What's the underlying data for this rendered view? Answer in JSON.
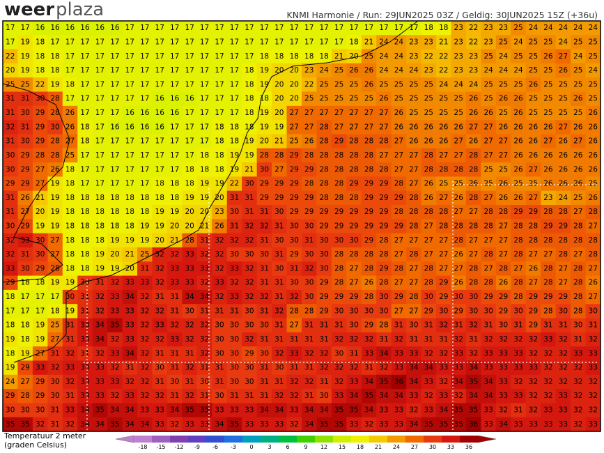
{
  "header": {
    "logo_weer": "weer",
    "logo_plaza": "plaza",
    "info": "KNMI Harmonie / Run: 29JUN2025 03Z / Geldig: 30JUN2025 15Z (+36u)"
  },
  "map": {
    "grid": [
      [
        17,
        17,
        16,
        16,
        16,
        16,
        16,
        16,
        17,
        17,
        17,
        17,
        17,
        17,
        17,
        17,
        17,
        17,
        17,
        17,
        17,
        17,
        17,
        17,
        17,
        17,
        17,
        17,
        18,
        18,
        23,
        22,
        23,
        23,
        25,
        24,
        24,
        24,
        24,
        24
      ],
      [
        17,
        19,
        18,
        17,
        17,
        17,
        17,
        17,
        17,
        17,
        17,
        17,
        17,
        17,
        17,
        17,
        17,
        17,
        17,
        17,
        17,
        17,
        17,
        18,
        21,
        24,
        24,
        23,
        23,
        21,
        23,
        22,
        23,
        25,
        24,
        25,
        25,
        24,
        25,
        25
      ],
      [
        22,
        19,
        18,
        18,
        17,
        17,
        17,
        17,
        17,
        17,
        17,
        17,
        17,
        17,
        17,
        17,
        17,
        18,
        18,
        18,
        18,
        18,
        21,
        20,
        25,
        24,
        24,
        23,
        22,
        22,
        23,
        23,
        25,
        24,
        25,
        25,
        26,
        27,
        24,
        25
      ],
      [
        20,
        19,
        18,
        18,
        17,
        17,
        17,
        17,
        17,
        17,
        17,
        17,
        17,
        17,
        17,
        17,
        18,
        19,
        20,
        20,
        23,
        24,
        25,
        26,
        26,
        24,
        24,
        24,
        23,
        22,
        23,
        23,
        24,
        24,
        24,
        25,
        25,
        26,
        25,
        24
      ],
      [
        25,
        25,
        22,
        19,
        18,
        17,
        17,
        17,
        17,
        17,
        17,
        17,
        17,
        17,
        17,
        17,
        18,
        19,
        20,
        20,
        22,
        25,
        25,
        25,
        26,
        25,
        25,
        25,
        25,
        24,
        24,
        24,
        25,
        25,
        25,
        26,
        25,
        25,
        25,
        25
      ],
      [
        31,
        31,
        30,
        28,
        17,
        17,
        17,
        17,
        17,
        17,
        16,
        16,
        16,
        17,
        17,
        17,
        18,
        18,
        20,
        20,
        25,
        25,
        25,
        25,
        25,
        26,
        25,
        25,
        25,
        25,
        25,
        26,
        25,
        26,
        26,
        25,
        25,
        25,
        26,
        25
      ],
      [
        31,
        30,
        29,
        28,
        26,
        17,
        17,
        17,
        16,
        16,
        16,
        16,
        17,
        17,
        17,
        17,
        18,
        19,
        20,
        27,
        27,
        27,
        27,
        27,
        27,
        27,
        26,
        25,
        25,
        25,
        25,
        26,
        26,
        25,
        26,
        25,
        25,
        25,
        25,
        26
      ],
      [
        32,
        31,
        29,
        30,
        26,
        18,
        17,
        16,
        16,
        16,
        16,
        17,
        17,
        17,
        18,
        18,
        18,
        19,
        19,
        27,
        27,
        28,
        27,
        27,
        27,
        27,
        26,
        26,
        26,
        26,
        26,
        27,
        27,
        26,
        26,
        26,
        26,
        27,
        26,
        26
      ],
      [
        31,
        30,
        29,
        28,
        27,
        18,
        17,
        17,
        17,
        17,
        17,
        17,
        17,
        17,
        18,
        18,
        19,
        20,
        21,
        25,
        26,
        28,
        29,
        28,
        28,
        28,
        27,
        26,
        26,
        26,
        27,
        26,
        27,
        27,
        26,
        26,
        27,
        26,
        27,
        26
      ],
      [
        30,
        29,
        28,
        28,
        25,
        17,
        17,
        17,
        17,
        17,
        17,
        17,
        17,
        18,
        18,
        19,
        19,
        28,
        28,
        29,
        28,
        28,
        28,
        28,
        28,
        27,
        27,
        27,
        28,
        27,
        27,
        28,
        27,
        27,
        26,
        26,
        26,
        26,
        26,
        26
      ],
      [
        30,
        29,
        27,
        26,
        18,
        17,
        17,
        17,
        17,
        17,
        17,
        17,
        18,
        18,
        18,
        19,
        21,
        30,
        27,
        29,
        29,
        28,
        28,
        28,
        28,
        28,
        27,
        27,
        28,
        28,
        28,
        28,
        25,
        25,
        26,
        27,
        26,
        26,
        26,
        26
      ],
      [
        29,
        29,
        27,
        19,
        18,
        17,
        17,
        17,
        17,
        17,
        18,
        18,
        18,
        19,
        19,
        22,
        30,
        29,
        29,
        29,
        28,
        28,
        28,
        29,
        29,
        29,
        28,
        27,
        26,
        25,
        25,
        26,
        25,
        26,
        25,
        25,
        26,
        26,
        26,
        25
      ],
      [
        31,
        26,
        21,
        19,
        18,
        18,
        18,
        18,
        18,
        18,
        18,
        18,
        19,
        19,
        20,
        31,
        31,
        29,
        29,
        29,
        29,
        28,
        28,
        28,
        29,
        29,
        29,
        28,
        26,
        27,
        26,
        28,
        27,
        26,
        26,
        27,
        23,
        24,
        25,
        26
      ],
      [
        31,
        27,
        20,
        19,
        18,
        18,
        18,
        18,
        18,
        18,
        19,
        19,
        20,
        20,
        23,
        30,
        31,
        31,
        30,
        29,
        29,
        29,
        29,
        29,
        29,
        29,
        28,
        28,
        28,
        28,
        27,
        27,
        28,
        28,
        29,
        29,
        28,
        28,
        27,
        28
      ],
      [
        30,
        29,
        19,
        19,
        18,
        18,
        18,
        18,
        18,
        19,
        19,
        20,
        20,
        21,
        26,
        31,
        32,
        32,
        31,
        30,
        30,
        29,
        29,
        29,
        29,
        29,
        29,
        28,
        27,
        28,
        28,
        28,
        28,
        27,
        28,
        28,
        29,
        29,
        28,
        27
      ],
      [
        32,
        33,
        30,
        27,
        18,
        18,
        18,
        19,
        19,
        19,
        20,
        21,
        28,
        31,
        32,
        32,
        32,
        31,
        30,
        30,
        31,
        30,
        30,
        30,
        29,
        28,
        27,
        27,
        27,
        27,
        28,
        27,
        27,
        27,
        28,
        28,
        28,
        28,
        28,
        28
      ],
      [
        32,
        31,
        30,
        27,
        18,
        18,
        19,
        20,
        21,
        25,
        32,
        32,
        33,
        32,
        32,
        30,
        30,
        30,
        31,
        29,
        30,
        30,
        28,
        28,
        28,
        28,
        27,
        28,
        27,
        27,
        26,
        27,
        28,
        27,
        28,
        27,
        27,
        28,
        27,
        28
      ],
      [
        33,
        30,
        29,
        28,
        18,
        18,
        19,
        19,
        20,
        31,
        32,
        33,
        33,
        33,
        32,
        33,
        32,
        31,
        30,
        31,
        32,
        30,
        28,
        27,
        28,
        29,
        28,
        27,
        28,
        27,
        27,
        28,
        27,
        28,
        27,
        26,
        28,
        27,
        28,
        27
      ],
      [
        29,
        18,
        18,
        19,
        19,
        30,
        31,
        32,
        33,
        33,
        32,
        33,
        33,
        32,
        33,
        32,
        32,
        31,
        31,
        30,
        30,
        29,
        28,
        27,
        26,
        28,
        27,
        27,
        28,
        29,
        26,
        28,
        28,
        26,
        28,
        27,
        28,
        27,
        28,
        26
      ],
      [
        18,
        17,
        17,
        17,
        30,
        31,
        32,
        33,
        34,
        32,
        31,
        31,
        34,
        34,
        32,
        33,
        32,
        32,
        31,
        32,
        30,
        29,
        29,
        29,
        28,
        30,
        29,
        28,
        30,
        29,
        30,
        30,
        29,
        29,
        28,
        29,
        29,
        29,
        28,
        27
      ],
      [
        17,
        17,
        17,
        18,
        19,
        31,
        32,
        33,
        33,
        32,
        32,
        31,
        30,
        31,
        31,
        31,
        30,
        31,
        32,
        28,
        28,
        29,
        30,
        30,
        30,
        30,
        27,
        27,
        29,
        30,
        29,
        30,
        30,
        29,
        30,
        29,
        28,
        30,
        28,
        30
      ],
      [
        18,
        18,
        19,
        25,
        31,
        33,
        34,
        35,
        33,
        32,
        33,
        32,
        32,
        32,
        30,
        30,
        30,
        30,
        31,
        27,
        31,
        31,
        31,
        30,
        29,
        28,
        31,
        30,
        31,
        32,
        31,
        32,
        31,
        30,
        31,
        29,
        31,
        31,
        30,
        31
      ],
      [
        19,
        18,
        19,
        27,
        31,
        33,
        34,
        32,
        33,
        32,
        32,
        33,
        32,
        32,
        30,
        30,
        32,
        31,
        31,
        31,
        31,
        31,
        32,
        32,
        32,
        31,
        32,
        31,
        31,
        31,
        32,
        31,
        32,
        32,
        32,
        32,
        33,
        32,
        31,
        32
      ],
      [
        18,
        19,
        27,
        31,
        32,
        31,
        32,
        33,
        34,
        32,
        31,
        31,
        31,
        32,
        30,
        30,
        29,
        30,
        32,
        33,
        32,
        32,
        30,
        31,
        33,
        34,
        33,
        33,
        32,
        32,
        33,
        32,
        33,
        33,
        33,
        32,
        32,
        32,
        33,
        33
      ],
      [
        19,
        29,
        33,
        32,
        33,
        33,
        33,
        32,
        31,
        32,
        30,
        31,
        32,
        31,
        31,
        30,
        30,
        31,
        30,
        31,
        31,
        32,
        32,
        32,
        31,
        32,
        33,
        34,
        34,
        33,
        33,
        34,
        33,
        33,
        33,
        33,
        32,
        32,
        32,
        33
      ],
      [
        24,
        27,
        29,
        30,
        32,
        33,
        33,
        33,
        32,
        32,
        31,
        30,
        31,
        30,
        31,
        30,
        30,
        31,
        31,
        32,
        32,
        31,
        32,
        33,
        34,
        35,
        36,
        34,
        33,
        32,
        34,
        35,
        34,
        33,
        32,
        32,
        32,
        32,
        32,
        32
      ],
      [
        29,
        28,
        29,
        30,
        31,
        33,
        33,
        32,
        33,
        32,
        32,
        31,
        32,
        31,
        30,
        31,
        31,
        31,
        32,
        32,
        31,
        30,
        33,
        34,
        35,
        34,
        34,
        33,
        32,
        33,
        32,
        34,
        34,
        33,
        33,
        32,
        32,
        33,
        32,
        32
      ],
      [
        30,
        30,
        30,
        31,
        33,
        34,
        35,
        34,
        34,
        33,
        33,
        34,
        35,
        35,
        33,
        33,
        33,
        34,
        34,
        33,
        34,
        34,
        35,
        35,
        34,
        33,
        33,
        32,
        33,
        34,
        35,
        35,
        33,
        32,
        31,
        32,
        33,
        33,
        32,
        32
      ],
      [
        35,
        35,
        32,
        31,
        32,
        34,
        34,
        35,
        34,
        34,
        33,
        32,
        33,
        33,
        34,
        35,
        33,
        33,
        33,
        32,
        34,
        35,
        35,
        33,
        32,
        33,
        33,
        34,
        35,
        35,
        35,
        36,
        33,
        34,
        33,
        33,
        33,
        33,
        32,
        33
      ]
    ]
  },
  "legend": {
    "title": "Temperatuur 2 meter",
    "subtitle": "(graden Celsius)",
    "ticks": [
      -18,
      -15,
      -12,
      -9,
      -6,
      -3,
      0,
      3,
      6,
      9,
      12,
      15,
      18,
      21,
      24,
      27,
      30,
      33,
      36
    ],
    "colors": [
      "#c080d0",
      "#a060c0",
      "#8040b0",
      "#6040c0",
      "#3050d0",
      "#2070e0",
      "#00a0c0",
      "#00b080",
      "#00c040",
      "#40d000",
      "#90e000",
      "#d0f000",
      "#eef200",
      "#f5c800",
      "#f39a00",
      "#f06a00",
      "#e83a10",
      "#d41810",
      "#a00000"
    ]
  }
}
